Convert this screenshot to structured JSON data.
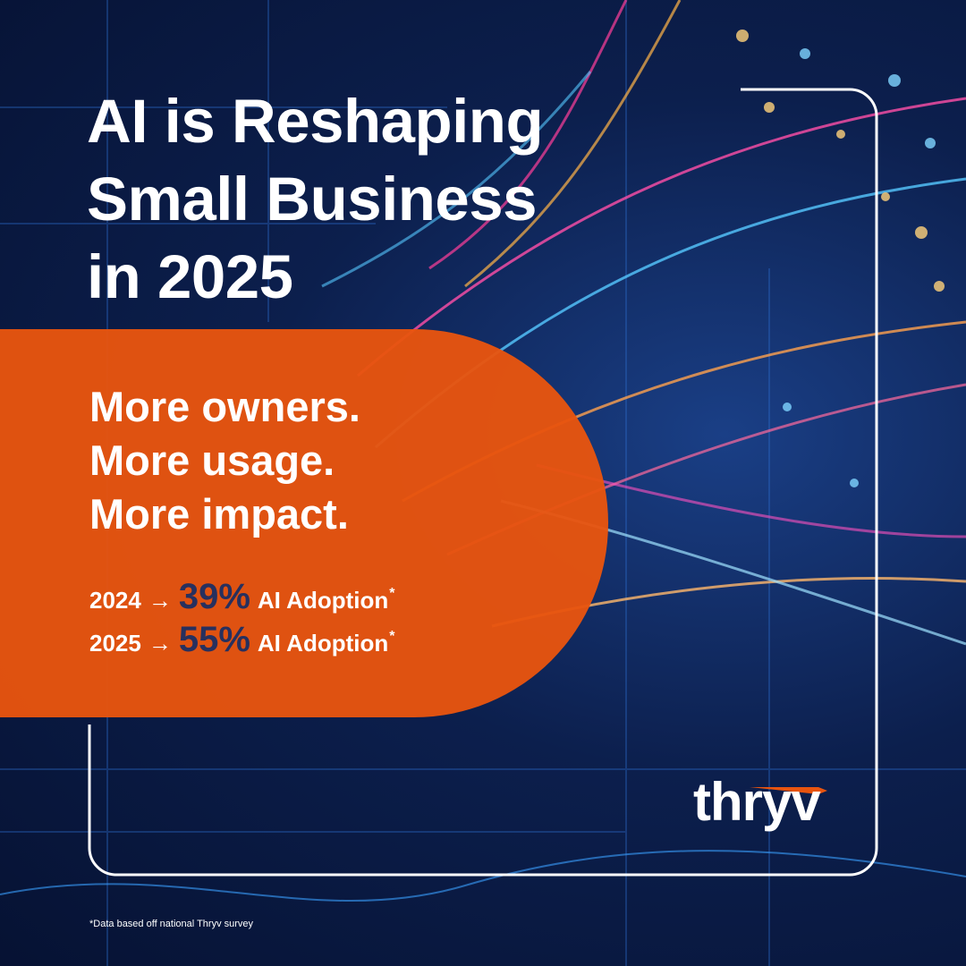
{
  "title": {
    "lines": [
      "AI is Reshaping",
      "Small Business",
      "in 2025"
    ]
  },
  "taglines": [
    "More owners.",
    "More usage.",
    "More impact."
  ],
  "stats": [
    {
      "year": "2024",
      "arrow": "→",
      "percent": "39%",
      "label": "AI Adoption",
      "mark": "*"
    },
    {
      "year": "2025",
      "arrow": "→",
      "percent": "55%",
      "label": "AI Adoption",
      "mark": "*"
    }
  ],
  "logo": "thryv",
  "footnote": "*Data based off national Thryv survey"
}
